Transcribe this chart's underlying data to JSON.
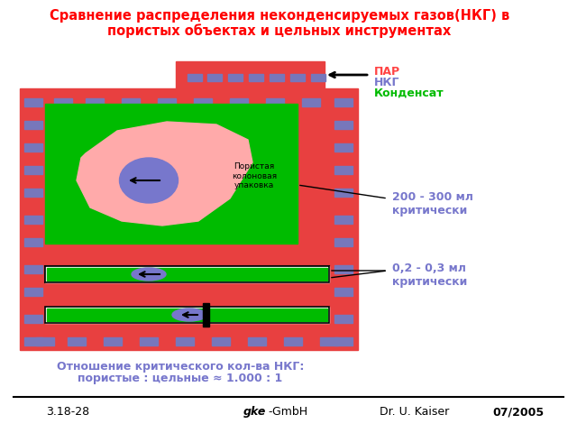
{
  "title_line1": "Сравнение распределения неконденсируемых газов(НКГ) в",
  "title_line2": "пористых объектах и цельных инструментах",
  "title_color": "#ff0000",
  "bg_color": "#ffffff",
  "main_rect_color": "#e84040",
  "green_rect_color": "#00bb00",
  "pink_blob_color": "#ffaaaa",
  "blue_small_color": "#7777bb",
  "blue_ellipse_color": "#7777cc",
  "legend_par": "ПАР",
  "legend_nkg": "НКГ",
  "legend_condensat": "Конденсат",
  "legend_par_color": "#ff4444",
  "legend_nkg_color": "#7777cc",
  "legend_condensat_color": "#00bb00",
  "label_200_300": "200 - 300 мл\nкритически",
  "label_02_03": "0,2 - 0,3 мл\nкритически",
  "label_color": "#7777cc",
  "porous_label": "Пористая\nколоновая\nупаковка",
  "bottom_text_line1": "Отношение критического кол-ва НКГ:",
  "bottom_text_line2": "пористые : цельные ≈ 1.000 : 1",
  "bottom_text_color": "#7777cc",
  "footer_left": "3.18-28",
  "footer_center_bold": "gke",
  "footer_center_normal": "-GmbH",
  "footer_right1": "Dr. U. Kaiser",
  "footer_right2": "07/2005",
  "footer_color": "#000000"
}
